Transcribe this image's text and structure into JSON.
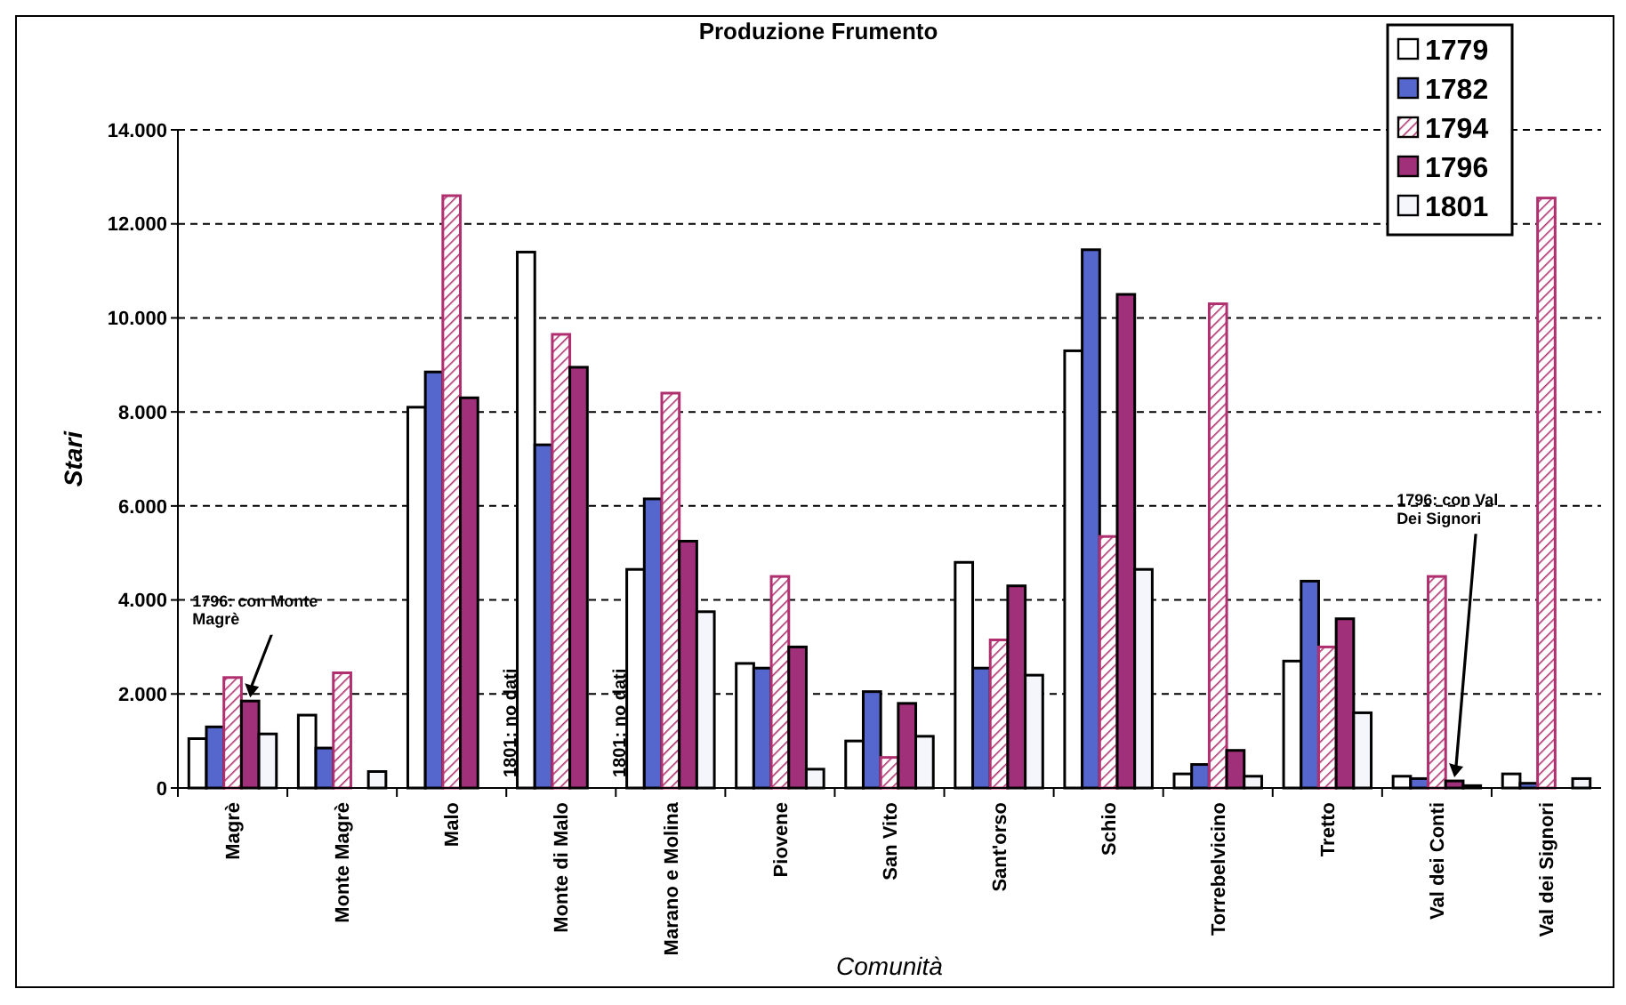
{
  "chart_data": {
    "type": "bar",
    "title": "Produzione Frumento",
    "xlabel": "Comunità",
    "ylabel": "Stari",
    "categories": [
      "Magrè",
      "Monte Magrè",
      "Malo",
      "Monte di Malo",
      "Marano e Molina",
      "Piovene",
      "San Vito",
      "Sant'orso",
      "Schio",
      "Torrebelvicino",
      "Tretto",
      "Val dei Conti",
      "Val dei Signori"
    ],
    "series": [
      {
        "name": "1779",
        "color": "#ffffff",
        "values": [
          1050,
          1550,
          8100,
          11400,
          4650,
          2650,
          1000,
          4800,
          9300,
          300,
          2700,
          250,
          300
        ]
      },
      {
        "name": "1782",
        "color": "#5566cc",
        "values": [
          1300,
          850,
          8850,
          7300,
          6150,
          2550,
          2050,
          2550,
          11450,
          500,
          4400,
          200,
          100
        ]
      },
      {
        "name": "1794",
        "color": "#b0306f",
        "values": [
          2350,
          2450,
          12600,
          9650,
          8400,
          4500,
          650,
          3150,
          5350,
          10300,
          3000,
          4500,
          12550
        ]
      },
      {
        "name": "1796",
        "color": "#a0307a",
        "values": [
          1850,
          null,
          8300,
          8950,
          5250,
          3000,
          1800,
          4300,
          10500,
          800,
          3600,
          150,
          null
        ]
      },
      {
        "name": "1801",
        "color": "#f4f6fc",
        "values": [
          1150,
          350,
          null,
          null,
          3750,
          400,
          1100,
          2400,
          4650,
          250,
          1600,
          50,
          200
        ]
      }
    ],
    "ylim": [
      0,
      14000
    ],
    "yticks": [
      {
        "value": 0,
        "label": "0"
      },
      {
        "value": 2000,
        "label": "2.000"
      },
      {
        "value": 4000,
        "label": "4.000"
      },
      {
        "value": 6000,
        "label": "6.000"
      },
      {
        "value": 8000,
        "label": "8.000"
      },
      {
        "value": 10000,
        "label": "10.000"
      },
      {
        "value": 12000,
        "label": "12.000"
      },
      {
        "value": 14000,
        "label": "14.000"
      }
    ],
    "grid": "y",
    "legend": "top right",
    "annotations": [
      "1796: con Monte Magrè",
      {
        "text": "1801: no dati",
        "x": "Malo"
      },
      {
        "text": "1801: no dati",
        "x": "Monte di Malo"
      },
      "1796: con Val Dei Signori"
    ]
  }
}
